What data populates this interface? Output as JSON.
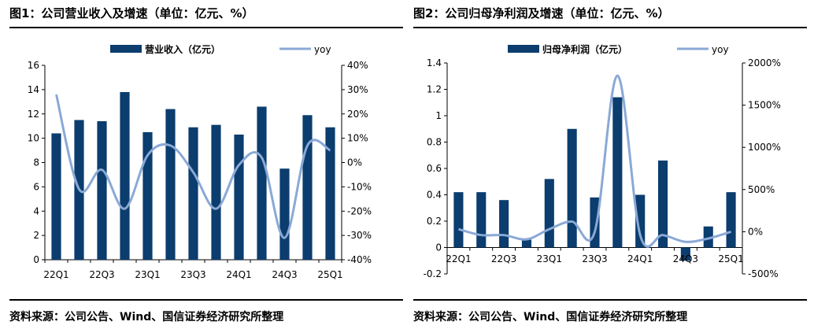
{
  "charts_meta": [
    {
      "title": "图1：公司营业收入及增速（单位：亿元、%）",
      "source": "资料来源：公司公告、Wind、国信证券经济研究所整理"
    },
    {
      "title": "图2：公司归母净利润及增速（单位：亿元、%）",
      "source": "资料来源：公司公告、Wind、国信证券经济研究所整理"
    }
  ],
  "colors": {
    "bar": "#0b3d6e",
    "line": "#8aa9d6"
  },
  "chart_data": [
    {
      "type": "bar",
      "categories": [
        "22Q1",
        "22Q2",
        "22Q3",
        "22Q4",
        "23Q1",
        "23Q2",
        "23Q3",
        "23Q4",
        "24Q1",
        "24Q2",
        "24Q3",
        "24Q4",
        "25Q1"
      ],
      "x_tick_labels": [
        "22Q1",
        "22Q3",
        "23Q1",
        "23Q3",
        "24Q1",
        "24Q3",
        "25Q1"
      ],
      "series": [
        {
          "name": "营业收入（亿元）",
          "type": "bar",
          "axis": "left",
          "values": [
            10.4,
            11.5,
            11.4,
            13.8,
            10.5,
            12.4,
            10.9,
            11.1,
            10.3,
            12.6,
            7.5,
            11.9,
            10.9
          ]
        },
        {
          "name": "yoy",
          "type": "line",
          "axis": "right",
          "unit": "%",
          "values": [
            28,
            -11,
            -3,
            -19,
            3,
            7,
            -4,
            -19,
            -1,
            2,
            -31,
            7,
            5
          ]
        }
      ],
      "ylim_left": [
        0,
        16
      ],
      "yticks_left": [
        "0",
        "2",
        "4",
        "6",
        "8",
        "10",
        "12",
        "14",
        "16"
      ],
      "ylim_right": [
        -40,
        40
      ],
      "yticks_right": [
        "-40%",
        "-30%",
        "-20%",
        "-10%",
        "0%",
        "10%",
        "20%",
        "30%",
        "40%"
      ],
      "legend_position": "top"
    },
    {
      "type": "bar",
      "categories": [
        "22Q1",
        "22Q2",
        "22Q3",
        "22Q4",
        "23Q1",
        "23Q2",
        "23Q3",
        "23Q4",
        "24Q1",
        "24Q2",
        "24Q3",
        "24Q4",
        "25Q1"
      ],
      "x_tick_labels": [
        "22Q1",
        "22Q3",
        "23Q1",
        "23Q3",
        "24Q1",
        "24Q3",
        "25Q1"
      ],
      "series": [
        {
          "name": "归母净利润（亿元）",
          "type": "bar",
          "axis": "left",
          "values": [
            0.42,
            0.42,
            0.36,
            0.06,
            0.52,
            0.9,
            0.38,
            1.14,
            0.4,
            0.66,
            -0.1,
            0.16,
            0.42
          ]
        },
        {
          "name": "yoy",
          "type": "line",
          "axis": "right",
          "unit": "%",
          "values": [
            30,
            -40,
            -40,
            -90,
            30,
            120,
            0,
            1850,
            -40,
            -40,
            -120,
            -80,
            0
          ]
        }
      ],
      "ylim_left": [
        -0.2,
        1.4
      ],
      "yticks_left": [
        "-0.2",
        "0",
        "0.2",
        "0.4",
        "0.6",
        "0.8",
        "1",
        "1.2",
        "1.4"
      ],
      "ylim_right": [
        -500,
        2000
      ],
      "yticks_right": [
        "-500%",
        "0%",
        "500%",
        "1000%",
        "1500%",
        "2000%"
      ],
      "legend_position": "top"
    }
  ]
}
